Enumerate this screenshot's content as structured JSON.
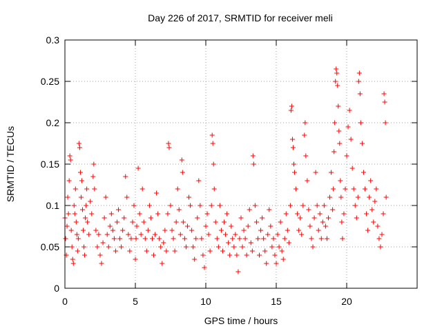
{
  "chart_data": {
    "type": "scatter",
    "title": "Day 226 of 2017, SRMTID for receiver meli",
    "xlabel": "GPS time / hours",
    "ylabel": "SRMTID / TECUs",
    "xlim": [
      0,
      25
    ],
    "ylim": [
      0,
      0.3
    ],
    "x_ticks": [
      0,
      5,
      10,
      15,
      20
    ],
    "x_tick_labels": [
      "0",
      "5",
      "10",
      "15",
      "20"
    ],
    "y_ticks": [
      0,
      0.05,
      0.1,
      0.15,
      0.2,
      0.25,
      0.3
    ],
    "y_tick_labels": [
      "0",
      "0.05",
      "0.1",
      "0.15",
      "0.2",
      "0.25",
      "0.3"
    ],
    "grid": true,
    "marker": "+",
    "marker_color": "#ff0000",
    "series": [
      {
        "points": [
          [
            0.0,
            0.085
          ],
          [
            0.05,
            0.06
          ],
          [
            0.1,
            0.04
          ],
          [
            0.15,
            0.075
          ],
          [
            0.2,
            0.11
          ],
          [
            0.25,
            0.09
          ],
          [
            0.3,
            0.13
          ],
          [
            0.35,
            0.16
          ],
          [
            0.4,
            0.155
          ],
          [
            0.45,
            0.07
          ],
          [
            0.5,
            0.05
          ],
          [
            0.55,
            0.035
          ],
          [
            0.6,
            0.03
          ],
          [
            0.65,
            0.1
          ],
          [
            0.7,
            0.09
          ],
          [
            0.75,
            0.12
          ],
          [
            0.8,
            0.08
          ],
          [
            0.85,
            0.065
          ],
          [
            0.9,
            0.045
          ],
          [
            0.95,
            0.06
          ],
          [
            1.0,
            0.175
          ],
          [
            1.05,
            0.17
          ],
          [
            1.1,
            0.14
          ],
          [
            1.15,
            0.11
          ],
          [
            1.2,
            0.13
          ],
          [
            1.25,
            0.095
          ],
          [
            1.3,
            0.07
          ],
          [
            1.35,
            0.05
          ],
          [
            1.4,
            0.04
          ],
          [
            1.45,
            0.085
          ],
          [
            1.5,
            0.1
          ],
          [
            1.55,
            0.12
          ],
          [
            1.6,
            0.08
          ],
          [
            1.7,
            0.065
          ],
          [
            1.8,
            0.105
          ],
          [
            1.9,
            0.09
          ],
          [
            2.0,
            0.135
          ],
          [
            2.05,
            0.15
          ],
          [
            2.1,
            0.12
          ],
          [
            2.2,
            0.07
          ],
          [
            2.3,
            0.05
          ],
          [
            2.4,
            0.065
          ],
          [
            2.5,
            0.04
          ],
          [
            2.6,
            0.03
          ],
          [
            2.7,
            0.055
          ],
          [
            2.8,
            0.085
          ],
          [
            2.9,
            0.11
          ],
          [
            3.0,
            0.065
          ],
          [
            3.1,
            0.05
          ],
          [
            3.2,
            0.075
          ],
          [
            3.3,
            0.09
          ],
          [
            3.4,
            0.07
          ],
          [
            3.5,
            0.06
          ],
          [
            3.6,
            0.045
          ],
          [
            3.7,
            0.08
          ],
          [
            3.8,
            0.095
          ],
          [
            3.9,
            0.06
          ],
          [
            4.0,
            0.05
          ],
          [
            4.1,
            0.07
          ],
          [
            4.2,
            0.085
          ],
          [
            4.3,
            0.135
          ],
          [
            4.4,
            0.11
          ],
          [
            4.5,
            0.065
          ],
          [
            4.6,
            0.045
          ],
          [
            4.7,
            0.06
          ],
          [
            4.8,
            0.08
          ],
          [
            4.9,
            0.1
          ],
          [
            5.0,
            0.035
          ],
          [
            5.05,
            0.06
          ],
          [
            5.1,
            0.075
          ],
          [
            5.2,
            0.145
          ],
          [
            5.3,
            0.09
          ],
          [
            5.4,
            0.065
          ],
          [
            5.5,
            0.12
          ],
          [
            5.6,
            0.08
          ],
          [
            5.7,
            0.06
          ],
          [
            5.8,
            0.045
          ],
          [
            5.9,
            0.07
          ],
          [
            6.0,
            0.1
          ],
          [
            6.1,
            0.085
          ],
          [
            6.2,
            0.06
          ],
          [
            6.3,
            0.04
          ],
          [
            6.4,
            0.065
          ],
          [
            6.5,
            0.115
          ],
          [
            6.6,
            0.09
          ],
          [
            6.7,
            0.06
          ],
          [
            6.8,
            0.05
          ],
          [
            6.9,
            0.03
          ],
          [
            7.0,
            0.055
          ],
          [
            7.1,
            0.07
          ],
          [
            7.2,
            0.045
          ],
          [
            7.3,
            0.09
          ],
          [
            7.35,
            0.175
          ],
          [
            7.4,
            0.17
          ],
          [
            7.5,
            0.1
          ],
          [
            7.6,
            0.07
          ],
          [
            7.7,
            0.06
          ],
          [
            7.8,
            0.045
          ],
          [
            7.9,
            0.08
          ],
          [
            8.0,
            0.12
          ],
          [
            8.1,
            0.095
          ],
          [
            8.2,
            0.065
          ],
          [
            8.3,
            0.155
          ],
          [
            8.35,
            0.14
          ],
          [
            8.4,
            0.08
          ],
          [
            8.5,
            0.06
          ],
          [
            8.6,
            0.05
          ],
          [
            8.7,
            0.075
          ],
          [
            8.8,
            0.11
          ],
          [
            8.9,
            0.1
          ],
          [
            9.0,
            0.07
          ],
          [
            9.1,
            0.05
          ],
          [
            9.2,
            0.035
          ],
          [
            9.3,
            0.06
          ],
          [
            9.4,
            0.085
          ],
          [
            9.5,
            0.13
          ],
          [
            9.6,
            0.1
          ],
          [
            9.7,
            0.06
          ],
          [
            9.8,
            0.04
          ],
          [
            9.9,
            0.025
          ],
          [
            10.0,
            0.075
          ],
          [
            10.1,
            0.09
          ],
          [
            10.2,
            0.065
          ],
          [
            10.3,
            0.045
          ],
          [
            10.4,
            0.1
          ],
          [
            10.45,
            0.185
          ],
          [
            10.5,
            0.175
          ],
          [
            10.55,
            0.15
          ],
          [
            10.6,
            0.12
          ],
          [
            10.7,
            0.08
          ],
          [
            10.8,
            0.06
          ],
          [
            10.9,
            0.05
          ],
          [
            11.0,
            0.1
          ],
          [
            11.1,
            0.07
          ],
          [
            11.2,
            0.045
          ],
          [
            11.3,
            0.08
          ],
          [
            11.4,
            0.065
          ],
          [
            11.5,
            0.09
          ],
          [
            11.6,
            0.055
          ],
          [
            11.7,
            0.04
          ],
          [
            11.8,
            0.075
          ],
          [
            11.9,
            0.06
          ],
          [
            12.0,
            0.05
          ],
          [
            12.1,
            0.065
          ],
          [
            12.2,
            0.04
          ],
          [
            12.3,
            0.02
          ],
          [
            12.4,
            0.06
          ],
          [
            12.5,
            0.085
          ],
          [
            12.6,
            0.05
          ],
          [
            12.7,
            0.07
          ],
          [
            12.8,
            0.06
          ],
          [
            12.9,
            0.04
          ],
          [
            13.0,
            0.075
          ],
          [
            13.1,
            0.095
          ],
          [
            13.2,
            0.055
          ],
          [
            13.3,
            0.045
          ],
          [
            13.35,
            0.16
          ],
          [
            13.4,
            0.15
          ],
          [
            13.5,
            0.1
          ],
          [
            13.6,
            0.08
          ],
          [
            13.7,
            0.06
          ],
          [
            13.8,
            0.04
          ],
          [
            13.9,
            0.07
          ],
          [
            14.0,
            0.085
          ],
          [
            14.1,
            0.06
          ],
          [
            14.2,
            0.045
          ],
          [
            14.3,
            0.03
          ],
          [
            14.4,
            0.065
          ],
          [
            14.5,
            0.095
          ],
          [
            14.6,
            0.075
          ],
          [
            14.7,
            0.05
          ],
          [
            14.8,
            0.06
          ],
          [
            14.9,
            0.04
          ],
          [
            15.0,
            0.03
          ],
          [
            15.1,
            0.065
          ],
          [
            15.2,
            0.05
          ],
          [
            15.3,
            0.08
          ],
          [
            15.4,
            0.045
          ],
          [
            15.5,
            0.035
          ],
          [
            15.6,
            0.06
          ],
          [
            15.7,
            0.09
          ],
          [
            15.8,
            0.07
          ],
          [
            15.9,
            0.055
          ],
          [
            16.0,
            0.1
          ],
          [
            16.05,
            0.215
          ],
          [
            16.1,
            0.22
          ],
          [
            16.15,
            0.18
          ],
          [
            16.2,
            0.17
          ],
          [
            16.25,
            0.15
          ],
          [
            16.3,
            0.14
          ],
          [
            16.4,
            0.12
          ],
          [
            16.5,
            0.09
          ],
          [
            16.6,
            0.07
          ],
          [
            16.7,
            0.085
          ],
          [
            16.8,
            0.065
          ],
          [
            16.9,
            0.1
          ],
          [
            17.0,
            0.185
          ],
          [
            17.05,
            0.2
          ],
          [
            17.1,
            0.16
          ],
          [
            17.2,
            0.13
          ],
          [
            17.3,
            0.095
          ],
          [
            17.4,
            0.075
          ],
          [
            17.5,
            0.06
          ],
          [
            17.6,
            0.05
          ],
          [
            17.7,
            0.085
          ],
          [
            17.8,
            0.14
          ],
          [
            17.9,
            0.1
          ],
          [
            18.0,
            0.07
          ],
          [
            18.1,
            0.09
          ],
          [
            18.2,
            0.06
          ],
          [
            18.3,
            0.08
          ],
          [
            18.4,
            0.1
          ],
          [
            18.5,
            0.075
          ],
          [
            18.6,
            0.06
          ],
          [
            18.7,
            0.085
          ],
          [
            18.8,
            0.11
          ],
          [
            18.9,
            0.14
          ],
          [
            19.0,
            0.095
          ],
          [
            19.05,
            0.12
          ],
          [
            19.1,
            0.165
          ],
          [
            19.15,
            0.2
          ],
          [
            19.2,
            0.25
          ],
          [
            19.25,
            0.265
          ],
          [
            19.3,
            0.26
          ],
          [
            19.35,
            0.245
          ],
          [
            19.4,
            0.22
          ],
          [
            19.45,
            0.19
          ],
          [
            19.5,
            0.175
          ],
          [
            19.55,
            0.13
          ],
          [
            19.6,
            0.11
          ],
          [
            19.65,
            0.08
          ],
          [
            19.7,
            0.06
          ],
          [
            19.8,
            0.09
          ],
          [
            19.9,
            0.12
          ],
          [
            20.0,
            0.16
          ],
          [
            20.1,
            0.195
          ],
          [
            20.2,
            0.215
          ],
          [
            20.3,
            0.18
          ],
          [
            20.4,
            0.145
          ],
          [
            20.5,
            0.12
          ],
          [
            20.6,
            0.1
          ],
          [
            20.7,
            0.085
          ],
          [
            20.8,
            0.11
          ],
          [
            20.85,
            0.25
          ],
          [
            20.9,
            0.26
          ],
          [
            20.95,
            0.235
          ],
          [
            21.0,
            0.2
          ],
          [
            21.1,
            0.175
          ],
          [
            21.2,
            0.14
          ],
          [
            21.3,
            0.12
          ],
          [
            21.4,
            0.09
          ],
          [
            21.5,
            0.07
          ],
          [
            21.6,
            0.11
          ],
          [
            21.7,
            0.13
          ],
          [
            21.8,
            0.095
          ],
          [
            21.9,
            0.08
          ],
          [
            22.0,
            0.105
          ],
          [
            22.1,
            0.12
          ],
          [
            22.2,
            0.075
          ],
          [
            22.3,
            0.06
          ],
          [
            22.4,
            0.05
          ],
          [
            22.5,
            0.065
          ],
          [
            22.6,
            0.09
          ],
          [
            22.65,
            0.235
          ],
          [
            22.7,
            0.225
          ],
          [
            22.75,
            0.2
          ],
          [
            22.8,
            0.11
          ]
        ]
      }
    ]
  }
}
